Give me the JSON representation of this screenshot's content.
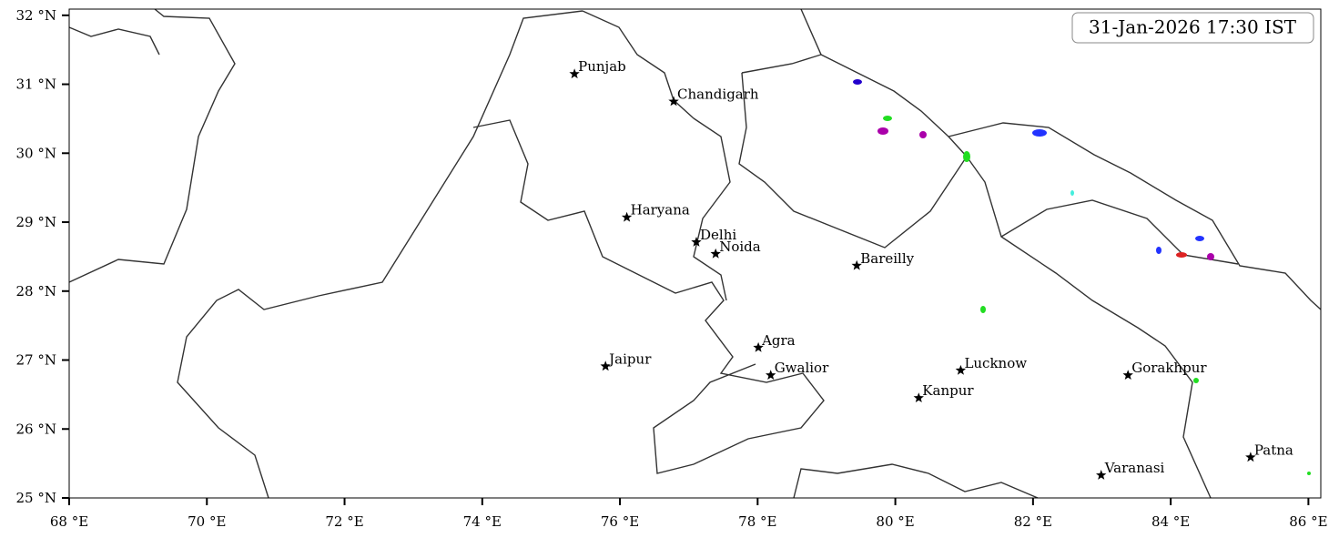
{
  "timestamp": "31-Jan-2026 17:30 IST",
  "map": {
    "xlim": [
      68,
      86.18
    ],
    "ylim": [
      25,
      32.09
    ],
    "xticks": [
      {
        "value": 68,
        "label": "68 °E"
      },
      {
        "value": 70,
        "label": "70 °E"
      },
      {
        "value": 72,
        "label": "72 °E"
      },
      {
        "value": 74,
        "label": "74 °E"
      },
      {
        "value": 76,
        "label": "76 °E"
      },
      {
        "value": 78,
        "label": "78 °E"
      },
      {
        "value": 80,
        "label": "80 °E"
      },
      {
        "value": 82,
        "label": "82 °E"
      },
      {
        "value": 84,
        "label": "84 °E"
      },
      {
        "value": 86,
        "label": "86 °E"
      }
    ],
    "yticks": [
      {
        "value": 25,
        "label": "25 °N"
      },
      {
        "value": 26,
        "label": "26 °N"
      },
      {
        "value": 27,
        "label": "27 °N"
      },
      {
        "value": 28,
        "label": "28 °N"
      },
      {
        "value": 29,
        "label": "29 °N"
      },
      {
        "value": 30,
        "label": "30 °N"
      },
      {
        "value": 31,
        "label": "31 °N"
      },
      {
        "value": 32,
        "label": "32 °N"
      }
    ],
    "cities": [
      {
        "name": "Punjab",
        "lon": 75.34,
        "lat": 31.15
      },
      {
        "name": "Chandigarh",
        "lon": 76.78,
        "lat": 30.75
      },
      {
        "name": "Haryana",
        "lon": 76.1,
        "lat": 29.07
      },
      {
        "name": "Delhi",
        "lon": 77.11,
        "lat": 28.71
      },
      {
        "name": "Noida",
        "lon": 77.39,
        "lat": 28.54
      },
      {
        "name": "Bareilly",
        "lon": 79.44,
        "lat": 28.37
      },
      {
        "name": "Agra",
        "lon": 78.01,
        "lat": 27.18
      },
      {
        "name": "Jaipur",
        "lon": 75.79,
        "lat": 26.91
      },
      {
        "name": "Gwalior",
        "lon": 78.19,
        "lat": 26.78
      },
      {
        "name": "Lucknow",
        "lon": 80.95,
        "lat": 26.85
      },
      {
        "name": "Gorakhpur",
        "lon": 83.38,
        "lat": 26.78
      },
      {
        "name": "Kanpur",
        "lon": 80.34,
        "lat": 26.45
      },
      {
        "name": "Varanasi",
        "lon": 82.99,
        "lat": 25.33
      },
      {
        "name": "Patna",
        "lon": 85.16,
        "lat": 25.59
      }
    ]
  }
}
